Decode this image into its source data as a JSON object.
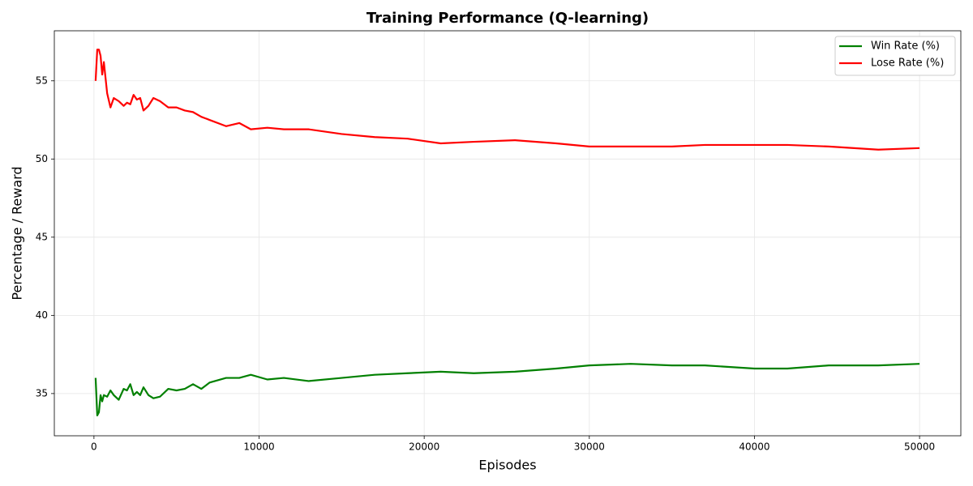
{
  "chart_data": {
    "type": "line",
    "title": "Training Performance (Q-learning)",
    "xlabel": "Episodes",
    "ylabel": "Percentage / Reward",
    "x": [
      100,
      200,
      300,
      400,
      500,
      600,
      800,
      1000,
      1200,
      1500,
      1800,
      2000,
      2200,
      2400,
      2600,
      2800,
      3000,
      3300,
      3600,
      4000,
      4500,
      5000,
      5500,
      6000,
      6500,
      7000,
      8000,
      8800,
      9500,
      10500,
      11500,
      13000,
      15000,
      17000,
      19000,
      21000,
      23000,
      25500,
      28000,
      30000,
      32500,
      35000,
      37000,
      40000,
      42000,
      44500,
      47500,
      50000
    ],
    "series": [
      {
        "name": "Win Rate (%)",
        "color": "#008000",
        "values": [
          36.0,
          33.6,
          33.8,
          34.9,
          34.5,
          34.9,
          34.8,
          35.2,
          34.9,
          34.6,
          35.3,
          35.2,
          35.6,
          34.9,
          35.1,
          34.9,
          35.4,
          34.9,
          34.7,
          34.8,
          35.3,
          35.2,
          35.3,
          35.6,
          35.3,
          35.7,
          36.0,
          36.0,
          36.2,
          35.9,
          36.0,
          35.8,
          36.0,
          36.2,
          36.3,
          36.4,
          36.3,
          36.4,
          36.6,
          36.8,
          36.9,
          36.8,
          36.8,
          36.6,
          36.6,
          36.8,
          36.8,
          36.9
        ]
      },
      {
        "name": "Lose Rate (%)",
        "color": "#ff0000",
        "values": [
          55.0,
          57.0,
          57.0,
          56.6,
          55.4,
          56.2,
          54.2,
          53.3,
          53.9,
          53.7,
          53.4,
          53.6,
          53.5,
          54.1,
          53.8,
          53.9,
          53.1,
          53.4,
          53.9,
          53.7,
          53.3,
          53.3,
          53.1,
          53.0,
          52.7,
          52.5,
          52.1,
          52.3,
          51.9,
          52.0,
          51.9,
          51.9,
          51.6,
          51.4,
          51.3,
          51.0,
          51.1,
          51.2,
          51.0,
          50.8,
          50.8,
          50.8,
          50.9,
          50.9,
          50.9,
          50.8,
          50.6,
          50.7
        ]
      }
    ],
    "xlim": [
      -2400,
      52500
    ],
    "xticks": [
      0,
      10000,
      20000,
      30000,
      40000,
      50000
    ],
    "ylim": [
      32.3,
      58.2
    ],
    "yticks": [
      35,
      40,
      45,
      50,
      55
    ],
    "grid": true,
    "legend": "upper right"
  }
}
